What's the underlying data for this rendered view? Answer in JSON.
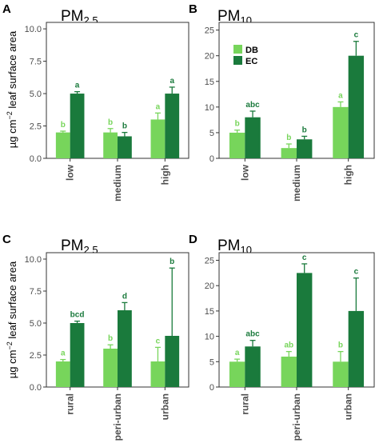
{
  "figure": {
    "ylabel_main": "µg cm",
    "ylabel_sup": "−2",
    "ylabel_rest": " leaf surface area",
    "legend": [
      {
        "name": "DB",
        "color": "#77d55b"
      },
      {
        "name": "EC",
        "color": "#1a7a3c"
      }
    ]
  },
  "chart_data": [
    {
      "type": "bar",
      "panel": "A",
      "title_main": "PM",
      "title_sub": "2.5",
      "categories": [
        "low",
        "medium",
        "high"
      ],
      "series": [
        {
          "name": "DB",
          "color": "#77d55b",
          "values": [
            2.0,
            2.0,
            3.0
          ],
          "err": [
            0.1,
            0.3,
            0.5
          ],
          "letters": [
            "b",
            "b",
            "a"
          ]
        },
        {
          "name": "EC",
          "color": "#1a7a3c",
          "values": [
            5.0,
            1.7,
            5.0
          ],
          "err": [
            0.15,
            0.3,
            0.5
          ],
          "letters": [
            "a",
            "b",
            "a"
          ]
        }
      ],
      "ylim": [
        0,
        10.5
      ],
      "yticks": [
        0.0,
        2.5,
        5.0,
        7.5,
        10.0
      ],
      "ytick_labels": [
        "0.0",
        "2.5",
        "5.0",
        "7.5",
        "10.0"
      ],
      "legend": false
    },
    {
      "type": "bar",
      "panel": "B",
      "title_main": "PM",
      "title_sub": "10",
      "categories": [
        "low",
        "medium",
        "high"
      ],
      "series": [
        {
          "name": "DB",
          "color": "#77d55b",
          "values": [
            5.0,
            2.0,
            10.0
          ],
          "err": [
            0.5,
            0.8,
            1.0
          ],
          "letters": [
            "b",
            "b",
            "a"
          ]
        },
        {
          "name": "EC",
          "color": "#1a7a3c",
          "values": [
            8.0,
            3.7,
            20.0
          ],
          "err": [
            1.2,
            0.6,
            2.8
          ],
          "letters": [
            "abc",
            "b",
            "c"
          ]
        }
      ],
      "ylim": [
        0,
        26.5
      ],
      "yticks": [
        0,
        5,
        10,
        15,
        20,
        25
      ],
      "ytick_labels": [
        "0",
        "5",
        "10",
        "15",
        "20",
        "25"
      ],
      "legend": true
    },
    {
      "type": "bar",
      "panel": "C",
      "title_main": "PM",
      "title_sub": "2.5",
      "categories": [
        "rural",
        "peri-urban",
        "urban"
      ],
      "series": [
        {
          "name": "DB",
          "color": "#77d55b",
          "values": [
            2.0,
            3.0,
            2.0
          ],
          "err": [
            0.15,
            0.3,
            1.1
          ],
          "letters": [
            "a",
            "b",
            "c"
          ]
        },
        {
          "name": "EC",
          "color": "#1a7a3c",
          "values": [
            5.0,
            6.0,
            4.0
          ],
          "err": [
            0.15,
            0.6,
            5.3
          ],
          "letters": [
            "bcd",
            "d",
            "b"
          ]
        }
      ],
      "ylim": [
        0,
        10.5
      ],
      "yticks": [
        0.0,
        2.5,
        5.0,
        7.5,
        10.0
      ],
      "ytick_labels": [
        "0.0",
        "2.5",
        "5.0",
        "7.5",
        "10.0"
      ],
      "legend": false
    },
    {
      "type": "bar",
      "panel": "D",
      "title_main": "PM",
      "title_sub": "10",
      "categories": [
        "rural",
        "peri-urban",
        "urban"
      ],
      "series": [
        {
          "name": "DB",
          "color": "#77d55b",
          "values": [
            5.0,
            6.0,
            5.0
          ],
          "err": [
            0.5,
            1.0,
            2.0
          ],
          "letters": [
            "a",
            "ab",
            "b"
          ]
        },
        {
          "name": "EC",
          "color": "#1a7a3c",
          "values": [
            8.0,
            22.5,
            15.0
          ],
          "err": [
            1.2,
            1.8,
            6.5
          ],
          "letters": [
            "abc",
            "c",
            "c"
          ]
        }
      ],
      "ylim": [
        0,
        26.5
      ],
      "yticks": [
        0,
        5,
        10,
        15,
        20,
        25
      ],
      "ytick_labels": [
        "0",
        "5",
        "10",
        "15",
        "20",
        "25"
      ],
      "legend": false
    }
  ]
}
